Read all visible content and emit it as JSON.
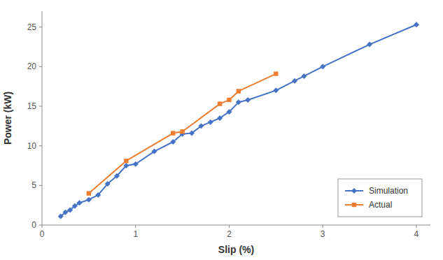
{
  "chart_data": {
    "type": "line",
    "xlabel": "Slip (%)",
    "ylabel": "Power (kW)",
    "xlim": [
      0,
      4.15
    ],
    "ylim": [
      0,
      27
    ],
    "xticks": [
      0,
      1,
      2,
      3,
      4
    ],
    "yticks": [
      0,
      5,
      10,
      15,
      20,
      25
    ],
    "legend": "lower right",
    "grid": false,
    "series": [
      {
        "name": "Simulation",
        "color": "#4472C4",
        "marker": "diamond",
        "x": [
          0.2,
          0.25,
          0.3,
          0.35,
          0.4,
          0.5,
          0.6,
          0.7,
          0.8,
          0.9,
          1.0,
          1.2,
          1.4,
          1.5,
          1.6,
          1.7,
          1.8,
          1.9,
          2.0,
          2.1,
          2.2,
          2.5,
          2.7,
          2.8,
          3.0,
          3.5,
          4.0
        ],
        "values": [
          1.1,
          1.6,
          1.9,
          2.4,
          2.8,
          3.2,
          3.8,
          5.2,
          6.2,
          7.5,
          7.7,
          9.3,
          10.5,
          11.5,
          11.6,
          12.5,
          13.0,
          13.5,
          14.3,
          15.5,
          15.8,
          17.0,
          18.2,
          18.8,
          20.0,
          22.8,
          25.3
        ]
      },
      {
        "name": "Actual",
        "color": "#ED7D31",
        "marker": "square",
        "x": [
          0.5,
          0.9,
          1.4,
          1.5,
          1.9,
          2.0,
          2.1,
          2.5
        ],
        "values": [
          4.0,
          8.1,
          11.6,
          11.8,
          15.3,
          15.8,
          16.9,
          19.1
        ]
      }
    ]
  }
}
